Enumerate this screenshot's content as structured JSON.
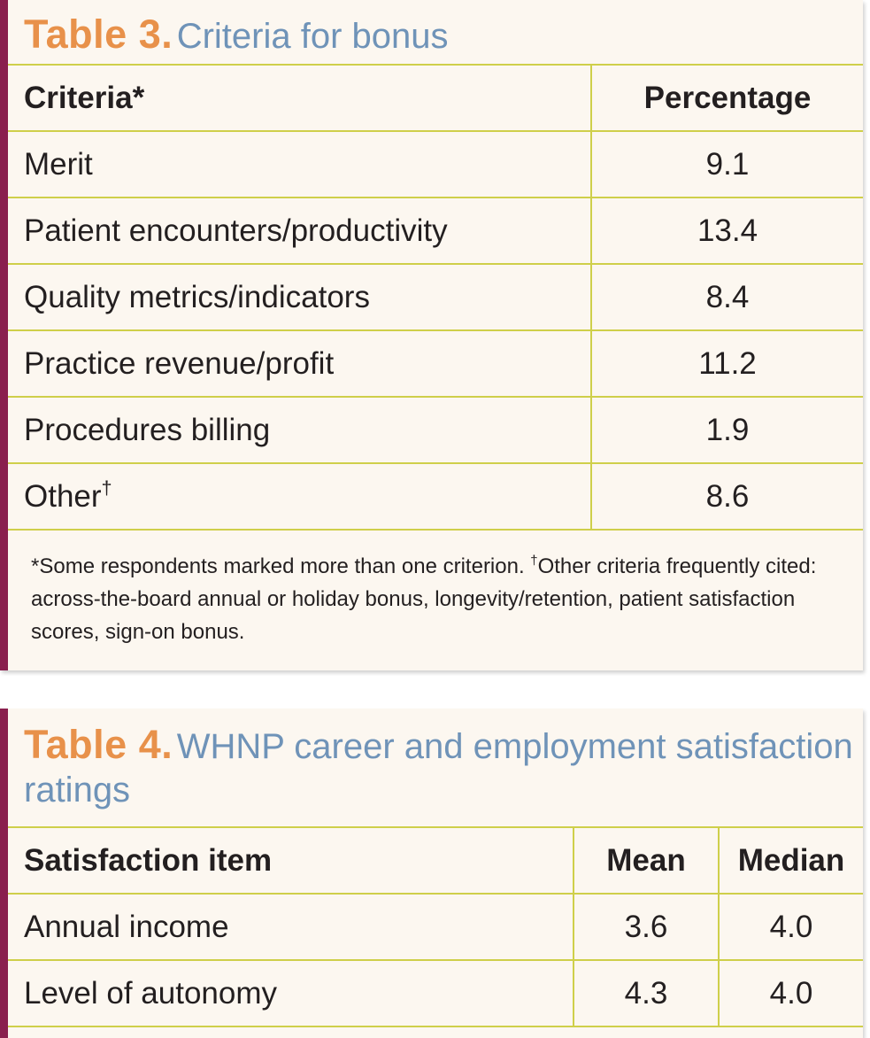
{
  "table3": {
    "label": "Table 3.",
    "title": "Criteria for bonus",
    "header": {
      "criteria": "Criteria",
      "criteria_mark": "*",
      "percentage": "Percentage"
    },
    "rows": [
      {
        "criteria": "Merit",
        "mark": "",
        "percentage": "9.1"
      },
      {
        "criteria": "Patient encounters/productivity",
        "mark": "",
        "percentage": "13.4"
      },
      {
        "criteria": "Quality metrics/indicators",
        "mark": "",
        "percentage": "8.4"
      },
      {
        "criteria": "Practice revenue/profit",
        "mark": "",
        "percentage": "11.2"
      },
      {
        "criteria": "Procedures billing",
        "mark": "",
        "percentage": "1.9"
      },
      {
        "criteria": "Other",
        "mark": "†",
        "percentage": "8.6"
      }
    ],
    "footnote_a": "*Some respondents marked more than one criterion. ",
    "footnote_dagger": "†",
    "footnote_b": "Other criteria frequently cited: across-the-board annual or holiday bonus, longevity/retention, patient satisfaction scores, sign-on bonus."
  },
  "table4": {
    "label": "Table 4.",
    "title": "WHNP career and employment satisfaction ratings",
    "header": {
      "item": "Satisfaction item",
      "mean": "Mean",
      "median": "Median"
    },
    "rows": [
      {
        "item": "Annual income",
        "mean": "3.6",
        "median": "4.0"
      },
      {
        "item": "Level of autonomy",
        "mean": "4.3",
        "median": "4.0"
      }
    ]
  },
  "colors": {
    "accent_bar": "#8a1f4e",
    "label_orange": "#e8914a",
    "title_blue": "#6f93b8",
    "rule_yellow": "#cfcf4a",
    "panel_bg": "#fcf7f0"
  }
}
